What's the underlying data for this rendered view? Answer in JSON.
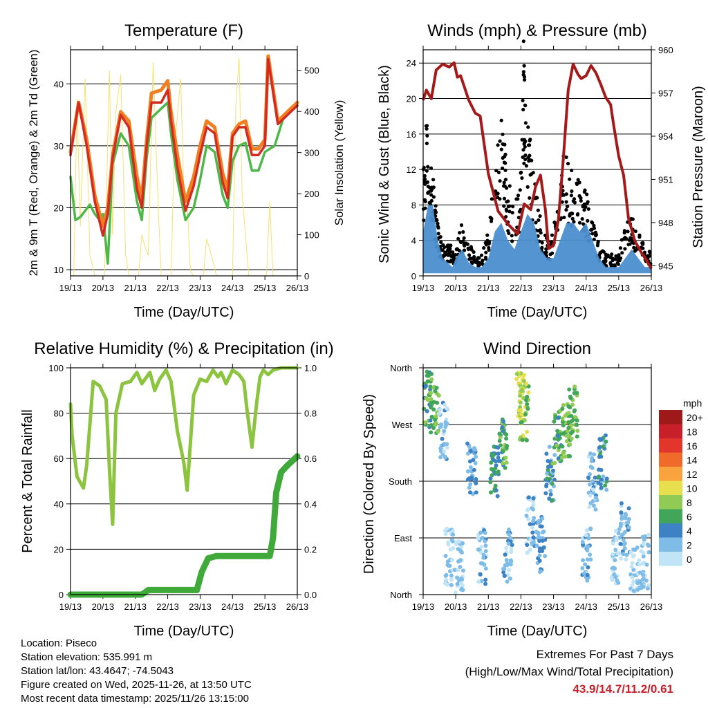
{
  "chart_data": [
    {
      "type": "line",
      "title": "Temperature (F)",
      "xlabel": "Time (Day/UTC)",
      "ylabel": "2m & 9m T (Red, Orange) & 2m Td (Green)",
      "y2label": "Solar Insolation (Yellow)",
      "xlim": [
        0,
        7
      ],
      "ylim": [
        9,
        45.5
      ],
      "y2lim": [
        0,
        550
      ],
      "categories": [
        "19/13",
        "20/13",
        "21/13",
        "22/13",
        "23/13",
        "24/13",
        "25/13",
        "26/13"
      ],
      "yticks": [
        10,
        20,
        30,
        40
      ],
      "y2ticks": [
        0,
        100,
        200,
        300,
        400,
        500
      ],
      "series": [
        {
          "name": "2m T",
          "color": "#d42a20",
          "x": [
            0,
            0.25,
            0.5,
            0.75,
            1.0,
            1.15,
            1.3,
            1.55,
            1.8,
            2.05,
            2.2,
            2.35,
            2.5,
            2.8,
            3.0,
            3.1,
            3.3,
            3.55,
            3.8,
            4.0,
            4.2,
            4.45,
            4.7,
            4.85,
            5.0,
            5.2,
            5.4,
            5.6,
            5.8,
            6.0,
            6.1,
            6.4,
            6.7,
            7.0
          ],
          "values": [
            28.5,
            37,
            30,
            21,
            15.5,
            19,
            28,
            35,
            33,
            23,
            20,
            30,
            37,
            37,
            39,
            34,
            26.5,
            19.5,
            23.5,
            28.5,
            33,
            32,
            24,
            21.5,
            31.5,
            33,
            33,
            28.5,
            28.5,
            30,
            44,
            33.5,
            35,
            36.5
          ]
        },
        {
          "name": "9m T",
          "color": "#f07f22",
          "x": [
            0,
            0.25,
            0.5,
            0.75,
            1.0,
            1.15,
            1.3,
            1.55,
            1.8,
            2.05,
            2.2,
            2.35,
            2.5,
            2.8,
            3.0,
            3.1,
            3.3,
            3.55,
            3.8,
            4.0,
            4.2,
            4.45,
            4.7,
            4.85,
            5.0,
            5.2,
            5.4,
            5.6,
            5.8,
            6.0,
            6.1,
            6.4,
            6.7,
            7.0
          ],
          "values": [
            29,
            37,
            31,
            22,
            17,
            20,
            28.5,
            35.5,
            34,
            25,
            21.5,
            31,
            38.5,
            39,
            40.5,
            35.5,
            28.5,
            21,
            25,
            30,
            34,
            33,
            25.5,
            23,
            32,
            33.5,
            34,
            29.5,
            29.5,
            31,
            44.5,
            34,
            35.5,
            37
          ]
        },
        {
          "name": "2m Td",
          "color": "#4db848",
          "x": [
            0,
            0.15,
            0.3,
            0.45,
            0.6,
            0.75,
            0.9,
            1.0,
            1.15,
            1.3,
            1.55,
            1.8,
            2.05,
            2.2,
            2.35,
            2.5,
            2.8,
            3.0,
            3.1,
            3.3,
            3.55,
            3.8,
            4.0,
            4.2,
            4.45,
            4.7,
            4.85,
            5.0,
            5.2,
            5.4,
            5.6,
            5.8,
            6.0,
            6.3,
            6.6,
            7.0
          ],
          "values": [
            25,
            18,
            18.5,
            19.5,
            20.5,
            19,
            18,
            19,
            11,
            27,
            32,
            30,
            21,
            18,
            28,
            34.5,
            36,
            37,
            32,
            24.5,
            18,
            20,
            24.5,
            30,
            29,
            22,
            20,
            27.5,
            30,
            30.5,
            26,
            26,
            29,
            30,
            35,
            36.5
          ]
        },
        {
          "name": "Solar Insolation",
          "axis": "y2",
          "color": "#f6e070",
          "x": [
            0.1,
            0.2,
            0.3,
            0.45,
            0.6,
            0.75,
            1.05,
            1.2,
            1.3,
            1.4,
            1.55,
            1.7,
            1.8,
            2.1,
            2.2,
            2.3,
            2.4,
            2.55,
            2.7,
            2.8,
            3.1,
            3.2,
            3.4,
            3.5,
            3.6,
            3.7,
            3.8,
            4.1,
            4.2,
            4.35,
            4.5,
            5.0,
            5.1,
            5.2,
            5.3,
            5.4,
            5.5,
            6.05,
            6.15,
            6.25
          ],
          "values": [
            0,
            430,
            120,
            480,
            50,
            0,
            0,
            500,
            100,
            400,
            490,
            50,
            0,
            0,
            100,
            70,
            50,
            520,
            180,
            0,
            0,
            300,
            480,
            200,
            180,
            10,
            0,
            0,
            90,
            50,
            0,
            0,
            410,
            530,
            200,
            100,
            0,
            0,
            180,
            0
          ]
        }
      ]
    },
    {
      "type": "scatter",
      "title": "Winds (mph) & Pressure (mb)",
      "xlabel": "Time (Day/UTC)",
      "ylabel": "Sonic Wind & Gust (Blue, Black)",
      "y2label": "Station Pressure (Maroon)",
      "xlim": [
        0,
        7
      ],
      "ylim": [
        0,
        25.5
      ],
      "y2lim": [
        944.3,
        960
      ],
      "categories": [
        "19/13",
        "20/13",
        "21/13",
        "22/13",
        "23/13",
        "24/13",
        "25/13",
        "26/13"
      ],
      "yticks": [
        0,
        4,
        8,
        12,
        16,
        20,
        24
      ],
      "y2ticks": [
        945,
        948,
        951,
        954,
        957,
        960
      ],
      "series": [
        {
          "name": "Sonic Wind",
          "color": "#4b8fcf",
          "style": "band",
          "x": [
            0,
            0.15,
            0.3,
            0.45,
            0.6,
            0.75,
            0.9,
            1.0,
            1.2,
            1.4,
            1.6,
            1.8,
            2.0,
            2.2,
            2.4,
            2.6,
            2.8,
            3.0,
            3.2,
            3.4,
            3.6,
            3.8,
            4.0,
            4.2,
            4.4,
            4.6,
            4.8,
            5.0,
            5.2,
            5.4,
            5.6,
            5.8,
            6.0,
            6.2,
            6.4,
            6.6,
            6.8,
            7.0
          ],
          "values": [
            5,
            8,
            8,
            4,
            2,
            1.5,
            1,
            2,
            3,
            1.5,
            1,
            1,
            2,
            5,
            6,
            4,
            3,
            5,
            7,
            6,
            3,
            2,
            2,
            4,
            6,
            6,
            5,
            6,
            4,
            2,
            1,
            1,
            1,
            2,
            3,
            2,
            1,
            1
          ]
        },
        {
          "name": "Gust",
          "color": "#000000",
          "style": "dots",
          "x": [
            0,
            0.1,
            0.2,
            0.3,
            0.4,
            0.5,
            0.6,
            0.7,
            0.8,
            0.9,
            1.0,
            1.2,
            1.4,
            1.6,
            1.8,
            2.0,
            2.2,
            2.4,
            2.5,
            2.6,
            2.8,
            3.0,
            3.1,
            3.2,
            3.3,
            3.5,
            3.7,
            3.9,
            4.1,
            4.3,
            4.5,
            4.7,
            4.9,
            5.0,
            5.2,
            5.4,
            5.6,
            5.8,
            6.0,
            6.2,
            6.4,
            6.6,
            6.8,
            7.0
          ],
          "values": [
            10,
            14,
            12,
            9,
            6,
            4,
            3,
            2.5,
            3,
            2.5,
            2.5,
            5,
            3,
            2,
            2,
            4,
            10,
            16,
            12,
            9,
            6,
            10,
            23.7,
            16,
            12,
            7,
            4,
            3,
            6,
            12,
            10,
            9,
            8,
            8,
            5,
            3,
            2,
            2,
            2,
            5,
            6,
            4,
            3,
            2
          ]
        },
        {
          "name": "Station Pressure",
          "axis": "y2",
          "color": "#a41a1a",
          "x": [
            0,
            0.1,
            0.25,
            0.4,
            0.6,
            0.8,
            0.95,
            1.05,
            1.15,
            1.4,
            1.6,
            1.75,
            2.0,
            2.3,
            2.6,
            2.9,
            3.1,
            3.3,
            3.45,
            3.6,
            3.75,
            3.85,
            4.0,
            4.15,
            4.3,
            4.45,
            4.6,
            4.75,
            4.85,
            5.0,
            5.15,
            5.3,
            5.45,
            5.6,
            5.75,
            5.85,
            6.0,
            6.15,
            6.3,
            6.5,
            6.7,
            6.85,
            7.0
          ],
          "values": [
            956.5,
            957.2,
            956.6,
            958.6,
            959.0,
            958.8,
            959.1,
            958.1,
            958.2,
            956.5,
            955.6,
            955.4,
            951.4,
            948.8,
            947.9,
            947.2,
            949.3,
            948.9,
            950.5,
            951.3,
            948.9,
            946.2,
            946.4,
            948.2,
            952.4,
            957.2,
            959.0,
            958.3,
            958.0,
            958.2,
            958.9,
            958.4,
            957.6,
            956.7,
            956.2,
            954.7,
            952.6,
            951.3,
            948.3,
            946.7,
            945.9,
            945.4,
            944.8
          ]
        }
      ]
    },
    {
      "type": "line",
      "title": "Relative Humidity (%) & Precipitation (in)",
      "xlabel": "Time (Day/UTC)",
      "ylabel": "Percent & Total Rainfall",
      "xlim": [
        0,
        7
      ],
      "ylim": [
        0,
        100
      ],
      "y2lim": [
        0,
        1
      ],
      "categories": [
        "19/13",
        "20/13",
        "21/13",
        "22/13",
        "23/13",
        "24/13",
        "25/13",
        "26/13"
      ],
      "yticks": [
        0,
        20,
        40,
        60,
        80,
        100
      ],
      "y2ticks": [
        "0.0",
        "0.2",
        "0.4",
        "0.6",
        "0.8",
        "1.0"
      ],
      "series": [
        {
          "name": "Relative Humidity",
          "color": "#8cc440",
          "x": [
            0,
            0.05,
            0.2,
            0.4,
            0.5,
            0.7,
            0.9,
            1.1,
            1.2,
            1.3,
            1.4,
            1.6,
            1.85,
            2.05,
            2.2,
            2.45,
            2.6,
            2.75,
            2.95,
            3.1,
            3.3,
            3.5,
            3.6,
            3.8,
            4.0,
            4.2,
            4.4,
            4.55,
            4.65,
            4.8,
            5.0,
            5.2,
            5.35,
            5.45,
            5.6,
            5.75,
            5.85,
            5.95,
            6.1,
            6.25,
            6.5,
            7.0
          ],
          "values": [
            84,
            70,
            52,
            47,
            57,
            94,
            92,
            86,
            56,
            31,
            80,
            93,
            94,
            98,
            93,
            98,
            90,
            95,
            99,
            94,
            72,
            58,
            46,
            88,
            95,
            94,
            99,
            96,
            98,
            93,
            99,
            97,
            94,
            81,
            65,
            85,
            96,
            99,
            97,
            99,
            100,
            100
          ]
        },
        {
          "name": "Total Precipitation",
          "axis": "y2",
          "color": "#3faa3a",
          "x": [
            0,
            2.2,
            2.4,
            3.9,
            4.05,
            4.25,
            4.5,
            4.7,
            6.15,
            6.25,
            6.35,
            6.5,
            6.7,
            7.0
          ],
          "values": [
            0,
            0,
            0.02,
            0.02,
            0.1,
            0.16,
            0.17,
            0.17,
            0.17,
            0.25,
            0.45,
            0.54,
            0.57,
            0.61
          ]
        }
      ]
    },
    {
      "type": "scatter",
      "title": "Wind Direction",
      "xlabel": "Time (Day/UTC)",
      "ylabel": "Direction (Colored By Speed)",
      "xlim": [
        0,
        7
      ],
      "ylim": [
        0,
        360
      ],
      "categories": [
        "19/13",
        "20/13",
        "21/13",
        "22/13",
        "23/13",
        "24/13",
        "25/13",
        "26/13"
      ],
      "yticks": [
        "North",
        "East",
        "South",
        "West",
        "North"
      ],
      "colorbar": {
        "label": "mph",
        "levels": [
          "20+",
          "18",
          "16",
          "14",
          "12",
          "10",
          "8",
          "6",
          "4",
          "2",
          "0"
        ],
        "colors": [
          "#9e1a1a",
          "#c8202a",
          "#e2352b",
          "#f06a2a",
          "#f8a33e",
          "#e8df4f",
          "#8fcb55",
          "#41a55a",
          "#3d82c4",
          "#80bce8",
          "#c2e4f7"
        ]
      },
      "clusters": [
        {
          "x": 0.15,
          "dir": 310,
          "speed": 6
        },
        {
          "x": 0.35,
          "dir": 300,
          "speed": 7
        },
        {
          "x": 0.6,
          "dir": 260,
          "speed": 2
        },
        {
          "x": 0.8,
          "dir": 60,
          "speed": 1
        },
        {
          "x": 1.1,
          "dir": 40,
          "speed": 1
        },
        {
          "x": 1.5,
          "dir": 200,
          "speed": 3
        },
        {
          "x": 1.8,
          "dir": 60,
          "speed": 2
        },
        {
          "x": 2.2,
          "dir": 190,
          "speed": 5
        },
        {
          "x": 2.45,
          "dir": 240,
          "speed": 6
        },
        {
          "x": 2.6,
          "dir": 60,
          "speed": 2
        },
        {
          "x": 3.0,
          "dir": 310,
          "speed": 9
        },
        {
          "x": 3.1,
          "dir": 290,
          "speed": 8
        },
        {
          "x": 3.3,
          "dir": 110,
          "speed": 2
        },
        {
          "x": 3.6,
          "dir": 80,
          "speed": 3
        },
        {
          "x": 3.9,
          "dir": 190,
          "speed": 4
        },
        {
          "x": 4.1,
          "dir": 250,
          "speed": 6
        },
        {
          "x": 4.4,
          "dir": 260,
          "speed": 7
        },
        {
          "x": 4.6,
          "dir": 290,
          "speed": 7
        },
        {
          "x": 5.0,
          "dir": 60,
          "speed": 2
        },
        {
          "x": 5.2,
          "dir": 180,
          "speed": 2
        },
        {
          "x": 5.5,
          "dir": 210,
          "speed": 4
        },
        {
          "x": 5.9,
          "dir": 60,
          "speed": 1
        },
        {
          "x": 6.2,
          "dir": 100,
          "speed": 2
        },
        {
          "x": 6.5,
          "dir": 30,
          "speed": 1
        },
        {
          "x": 6.8,
          "dir": 50,
          "speed": 1
        }
      ]
    }
  ],
  "info": {
    "location": "Location: Piseco",
    "elevation": "Station elevation: 535.991 m",
    "latlon": "Station lat/lon: 43.4647; -74.5043",
    "created": "Figure created on Wed, 2025-11-26, at 13:50 UTC",
    "recent": "Most recent data timestamp: 2025/11/26 13:15:00"
  },
  "extremes": {
    "heading": "Extremes For Past 7 Days",
    "subheading": "(High/Low/Max Wind/Total Precipitation)",
    "values": "43.9/14.7/11.2/0.61"
  }
}
